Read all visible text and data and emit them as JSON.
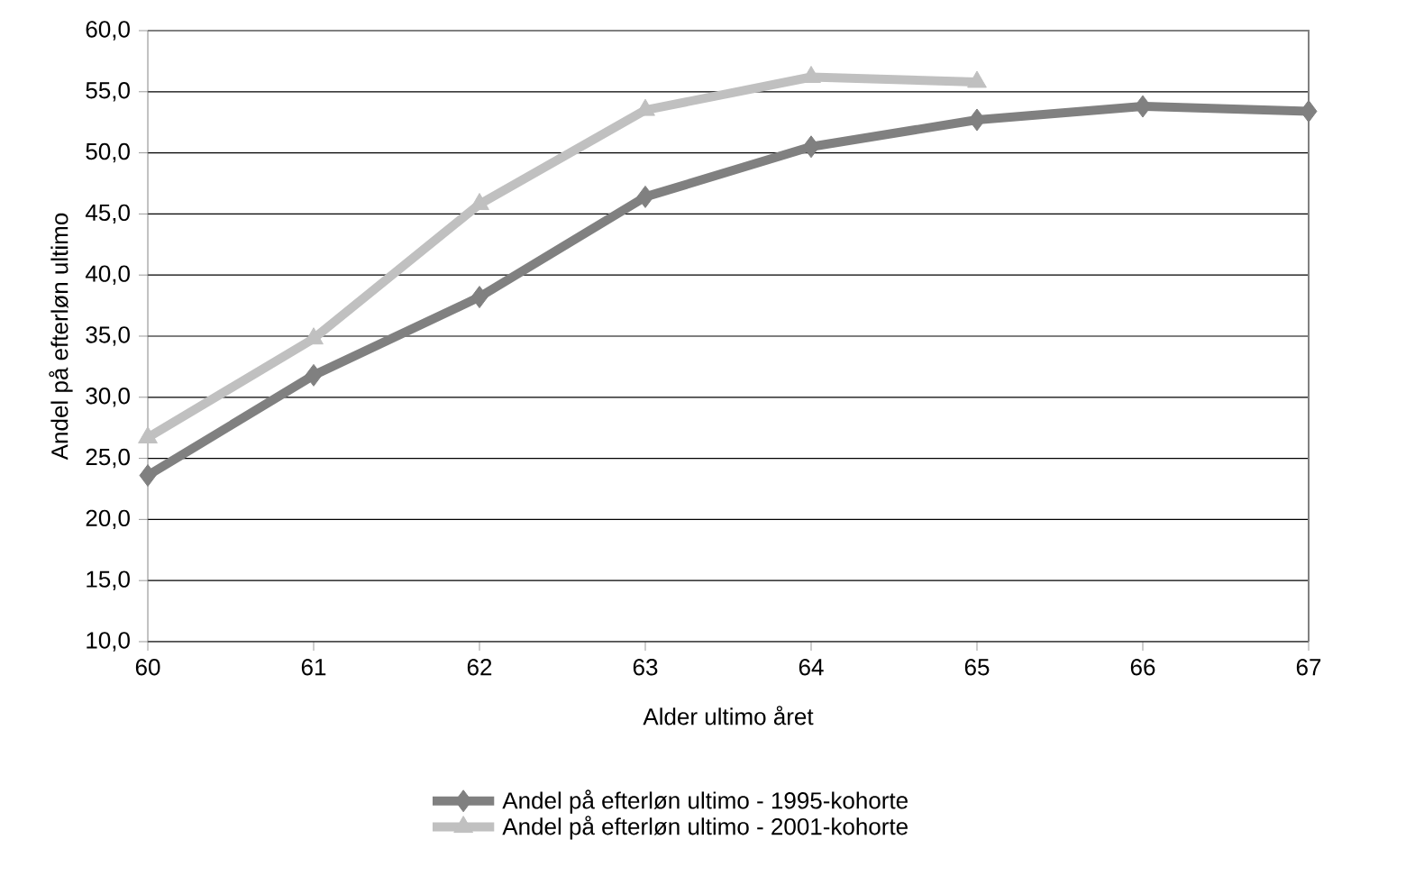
{
  "chart_data": {
    "type": "line",
    "xlabel": "Alder ultimo året",
    "ylabel": "Andel på efterløn ultimo",
    "x": [
      60,
      61,
      62,
      63,
      64,
      65,
      66,
      67
    ],
    "xlim": [
      60,
      67
    ],
    "xticks": [
      60,
      61,
      62,
      63,
      64,
      65,
      66,
      67
    ],
    "ylim": [
      10,
      60
    ],
    "yticks": [
      {
        "value": 10,
        "label": "10,0"
      },
      {
        "value": 15,
        "label": "15,0"
      },
      {
        "value": 20,
        "label": "20,0"
      },
      {
        "value": 25,
        "label": "25,0"
      },
      {
        "value": 30,
        "label": "30,0"
      },
      {
        "value": 35,
        "label": "35,0"
      },
      {
        "value": 40,
        "label": "40,0"
      },
      {
        "value": 45,
        "label": "45,0"
      },
      {
        "value": 50,
        "label": "50,0"
      },
      {
        "value": 55,
        "label": "55,0"
      },
      {
        "value": 60,
        "label": "60,0"
      }
    ],
    "grid": "y",
    "legend": "bottom",
    "series": [
      {
        "name": "Andel på efterløn ultimo - 1995-kohorte",
        "color": "#808080",
        "marker": "diamond",
        "values": [
          23.6,
          31.8,
          38.2,
          46.4,
          50.5,
          52.7,
          53.8,
          53.4
        ]
      },
      {
        "name": "Andel på efterløn ultimo - 2001-kohorte",
        "color": "#c0c0c0",
        "marker": "triangle",
        "values": [
          26.7,
          34.8,
          45.8,
          53.5,
          56.2,
          55.8,
          null,
          null
        ]
      }
    ]
  }
}
